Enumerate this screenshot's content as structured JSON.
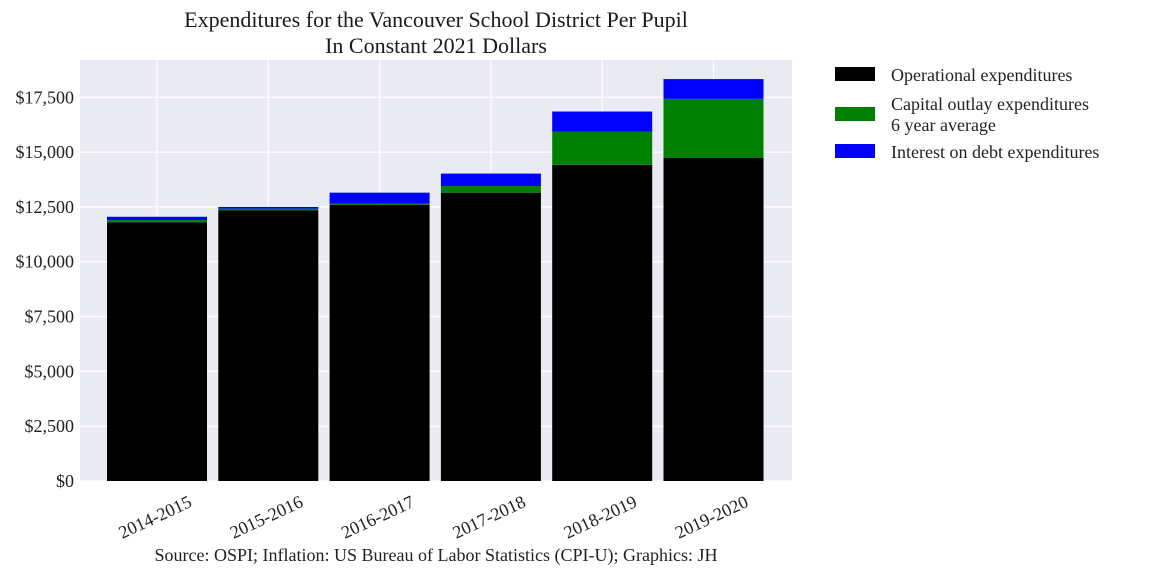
{
  "chart_data": {
    "type": "bar",
    "stacked": true,
    "title": [
      "Expenditures for the Vancouver School District Per Pupil",
      "In Constant 2021 Dollars"
    ],
    "categories": [
      "2014-2015",
      "2015-2016",
      "2016-2017",
      "2017-2018",
      "2018-2019",
      "2019-2020"
    ],
    "series": [
      {
        "name": "Operational expenditures",
        "color": "#000000",
        "values": [
          11800,
          12350,
          12600,
          13150,
          14420,
          14730
        ]
      },
      {
        "name": "Capital outlay expenditures\n6 year average",
        "color": "#008000",
        "values": [
          100,
          70,
          50,
          300,
          1520,
          2700
        ]
      },
      {
        "name": "Interest on debt expenditures",
        "color": "#0000ff",
        "values": [
          150,
          80,
          500,
          570,
          910,
          900
        ]
      }
    ],
    "ylim": [
      0,
      19200
    ],
    "yticks": [
      0,
      2500,
      5000,
      7500,
      10000,
      12500,
      15000,
      17500
    ],
    "ytick_labels": [
      "$0",
      "$2,500",
      "$5,000",
      "$7,500",
      "$10,000",
      "$12,500",
      "$15,000",
      "$17,500"
    ],
    "xlabel": "",
    "ylabel": "",
    "grid": true,
    "legend_position": "outside-right-top",
    "source": "Source: OSPI; Inflation: US Bureau of Labor Statistics (CPI-U); Graphics: JH"
  }
}
